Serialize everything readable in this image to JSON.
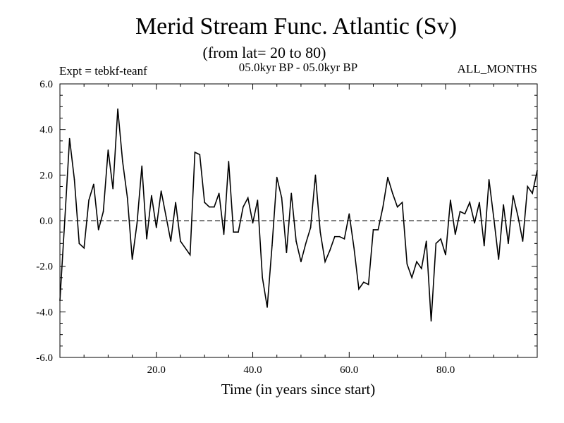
{
  "chart_data": {
    "type": "line",
    "title": "Merid Stream Func. Atlantic (Sv)",
    "subtitle": "(from lat= 20 to 80)",
    "experiment_label": "Expt = tebkf-teanf",
    "period_label": "05.0kyr BP - 05.0kyr BP",
    "months_label": "ALL_MONTHS",
    "xlabel": "Time (in years since start)",
    "ylabel": "",
    "xlim": [
      0,
      99
    ],
    "ylim": [
      -6,
      6
    ],
    "x_ticks": [
      20,
      40,
      60,
      80
    ],
    "x_tick_labels": [
      "20.0",
      "40.0",
      "60.0",
      "80.0"
    ],
    "y_ticks": [
      -6,
      -4,
      -2,
      0,
      2,
      4,
      6
    ],
    "y_tick_labels": [
      "-6.0",
      "-4.0",
      "-2.0",
      "0.0",
      "2.0",
      "4.0",
      "6.0"
    ],
    "zero_line": "dashed",
    "grid": false,
    "series": [
      {
        "name": "Merid Stream Func.",
        "x": [
          0,
          1,
          2,
          3,
          4,
          5,
          6,
          7,
          8,
          9,
          10,
          11,
          12,
          13,
          14,
          15,
          16,
          17,
          18,
          19,
          20,
          21,
          22,
          23,
          24,
          25,
          26,
          27,
          28,
          29,
          30,
          31,
          32,
          33,
          34,
          35,
          36,
          37,
          38,
          39,
          40,
          41,
          42,
          43,
          44,
          45,
          46,
          47,
          48,
          49,
          50,
          51,
          52,
          53,
          54,
          55,
          56,
          57,
          58,
          59,
          60,
          61,
          62,
          63,
          64,
          65,
          66,
          67,
          68,
          69,
          70,
          71,
          72,
          73,
          74,
          75,
          76,
          77,
          78,
          79,
          80,
          81,
          82,
          83,
          84,
          85,
          86,
          87,
          88,
          89,
          90,
          91,
          92,
          93,
          94,
          95,
          96,
          97,
          98,
          99
        ],
        "values": [
          -3.5,
          0.0,
          3.6,
          1.8,
          -1.0,
          -1.2,
          0.9,
          1.6,
          -0.4,
          0.4,
          3.1,
          1.4,
          4.9,
          2.6,
          1.0,
          -1.7,
          -0.1,
          2.4,
          -0.8,
          1.1,
          -0.3,
          1.3,
          0.2,
          -0.9,
          0.8,
          -0.9,
          -1.2,
          -1.5,
          3.0,
          2.9,
          0.8,
          0.6,
          0.6,
          1.2,
          -0.6,
          2.6,
          -0.5,
          -0.5,
          0.6,
          1.0,
          -0.1,
          0.9,
          -2.5,
          -3.8,
          -1.1,
          1.9,
          1.0,
          -1.4,
          1.2,
          -0.9,
          -1.8,
          -1.0,
          -0.3,
          2.0,
          -0.5,
          -1.8,
          -1.3,
          -0.7,
          -0.7,
          -0.8,
          0.3,
          -1.2,
          -3.0,
          -2.7,
          -2.8,
          -0.4,
          -0.4,
          0.6,
          1.9,
          1.2,
          0.6,
          0.8,
          -1.9,
          -2.5,
          -1.8,
          -2.1,
          -0.9,
          -4.4,
          -1.0,
          -0.8,
          -1.5,
          0.9,
          -0.6,
          0.4,
          0.3,
          0.8,
          -0.1,
          0.8,
          -1.1,
          1.8,
          0.1,
          -1.7,
          0.7,
          -1.0,
          1.1,
          0.2,
          -0.9,
          1.5,
          1.2,
          2.2
        ]
      }
    ]
  }
}
